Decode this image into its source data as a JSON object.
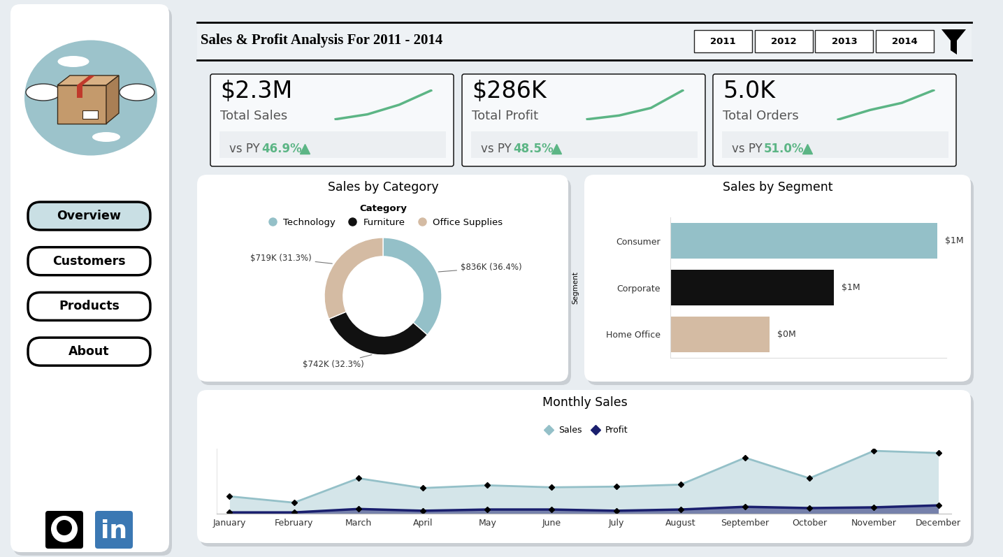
{
  "header": {
    "title": "Sales & Profit Analysis For 2011 - 2014",
    "year_buttons": [
      "2011",
      "2012",
      "2013",
      "2014"
    ]
  },
  "nav": {
    "buttons": [
      "Overview",
      "Customers",
      "Products",
      "About"
    ],
    "selected": "Overview",
    "linkedin_mark": "in"
  },
  "kpis": [
    {
      "value": "$2.3M",
      "label": "Total Sales",
      "comparison": "vs PY",
      "change": "46.9%",
      "trend": {
        "type": "line",
        "values": [
          830000,
          1080000,
          1570000,
          2300000
        ],
        "ylim": [
          780000,
          2350000
        ],
        "color": "#5cb585",
        "tick_labels": false
      }
    },
    {
      "value": "$286K",
      "label": "Total Profit",
      "comparison": "vs PY",
      "change": "48.5%",
      "trend": {
        "type": "line",
        "values": [
          133000,
          153000,
          193000,
          286000
        ],
        "ylim": [
          128000,
          291000
        ],
        "color": "#5cb585",
        "tick_labels": false
      }
    },
    {
      "value": "5.0K",
      "label": "Total Orders",
      "comparison": "vs PY",
      "change": "51.0%",
      "trend": {
        "type": "line",
        "values": [
          1090,
          2360,
          3310,
          5000
        ],
        "ylim": [
          1000,
          5100
        ],
        "color": "#5cb585",
        "tick_labels": false
      }
    }
  ],
  "chart_data": [
    {
      "type": "donut",
      "title": "Sales by Category",
      "legend_title": "Category",
      "legend": "upper center",
      "categories": [
        "Technology",
        "Furniture",
        "Office Supplies"
      ],
      "values": [
        836000,
        742000,
        719000
      ],
      "value_labels": [
        "$836K (36.4%)",
        "$742K (32.3%)",
        "$719K (31.3%)"
      ],
      "colors": [
        "#94c0c8",
        "#111111",
        "#d4bba3"
      ],
      "data_labels": true
    },
    {
      "type": "bar",
      "orientation": "horizontal",
      "title": "Sales by Segment",
      "y_label": "Segment",
      "categories": [
        "Consumer",
        "Corporate",
        "Home Office"
      ],
      "values": [
        1160000,
        710000,
        430000
      ],
      "value_labels": [
        "$1M",
        "$1M",
        "$0M"
      ],
      "colors": [
        "#94c0c8",
        "#111111",
        "#d4bba3"
      ],
      "data_labels": true,
      "xlim": [
        0,
        1200000
      ],
      "xticks": [],
      "tick_labels": "y"
    },
    {
      "type": "area",
      "title": "Monthly Sales",
      "legend": "upper center",
      "categories": [
        "January",
        "February",
        "March",
        "April",
        "May",
        "June",
        "July",
        "August",
        "September",
        "October",
        "November",
        "December"
      ],
      "series": [
        {
          "name": "Sales",
          "color": "#94c0c8",
          "marker": "diamond",
          "values": [
            96000,
            61000,
            196000,
            142000,
            157000,
            146000,
            150000,
            161000,
            310000,
            196000,
            348000,
            336000
          ]
        },
        {
          "name": "Profit",
          "color": "#1a1f6e",
          "marker": "diamond",
          "values": [
            7000,
            7000,
            26000,
            16000,
            23000,
            23000,
            16000,
            23000,
            38000,
            31000,
            35000,
            46000
          ]
        }
      ],
      "ylim": [
        0,
        360000
      ],
      "yticks": [],
      "tick_labels": "x"
    }
  ]
}
